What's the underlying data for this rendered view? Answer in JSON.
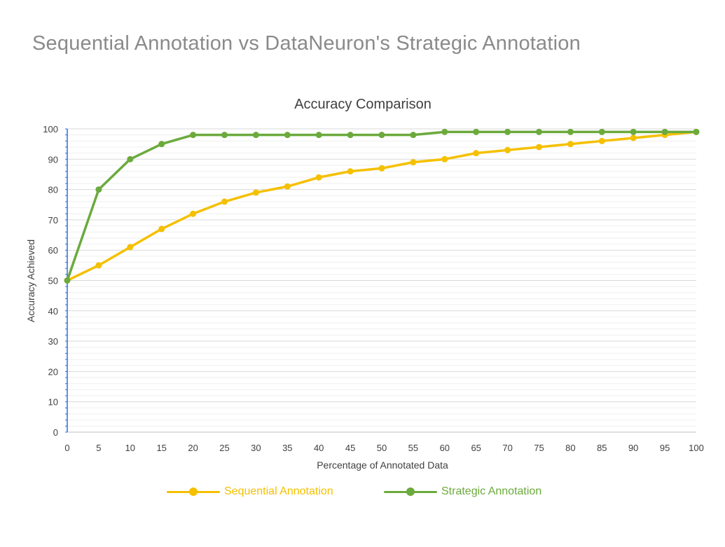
{
  "page": {
    "title": "Sequential Annotation vs DataNeuron's Strategic Annotation"
  },
  "colors": {
    "sequential": "#F5C000",
    "strategic": "#6BAA3C",
    "text": "#404040",
    "axis": "#2e6fd6"
  },
  "chart_data": {
    "type": "line",
    "title": "Accuracy Comparison",
    "xlabel": "Percentage of Annotated Data",
    "ylabel": "Accuracy Achieved",
    "x": [
      0,
      5,
      10,
      15,
      20,
      25,
      30,
      35,
      40,
      45,
      50,
      55,
      60,
      65,
      70,
      75,
      80,
      85,
      90,
      95,
      100
    ],
    "xlim": [
      0,
      100
    ],
    "ylim": [
      0,
      100
    ],
    "yticks": [
      0,
      10,
      20,
      30,
      40,
      50,
      60,
      70,
      80,
      90,
      100
    ],
    "grid": true,
    "legend_position": "bottom",
    "series": [
      {
        "name": "Sequential Annotation",
        "values": [
          50,
          55,
          61,
          67,
          72,
          76,
          79,
          81,
          84,
          86,
          87,
          89,
          90,
          92,
          93,
          94,
          95,
          96,
          97,
          98,
          99
        ]
      },
      {
        "name": "Strategic Annotation",
        "values": [
          50,
          80,
          90,
          95,
          98,
          98,
          98,
          98,
          98,
          98,
          98,
          98,
          99,
          99,
          99,
          99,
          99,
          99,
          99,
          99,
          99
        ]
      }
    ]
  }
}
